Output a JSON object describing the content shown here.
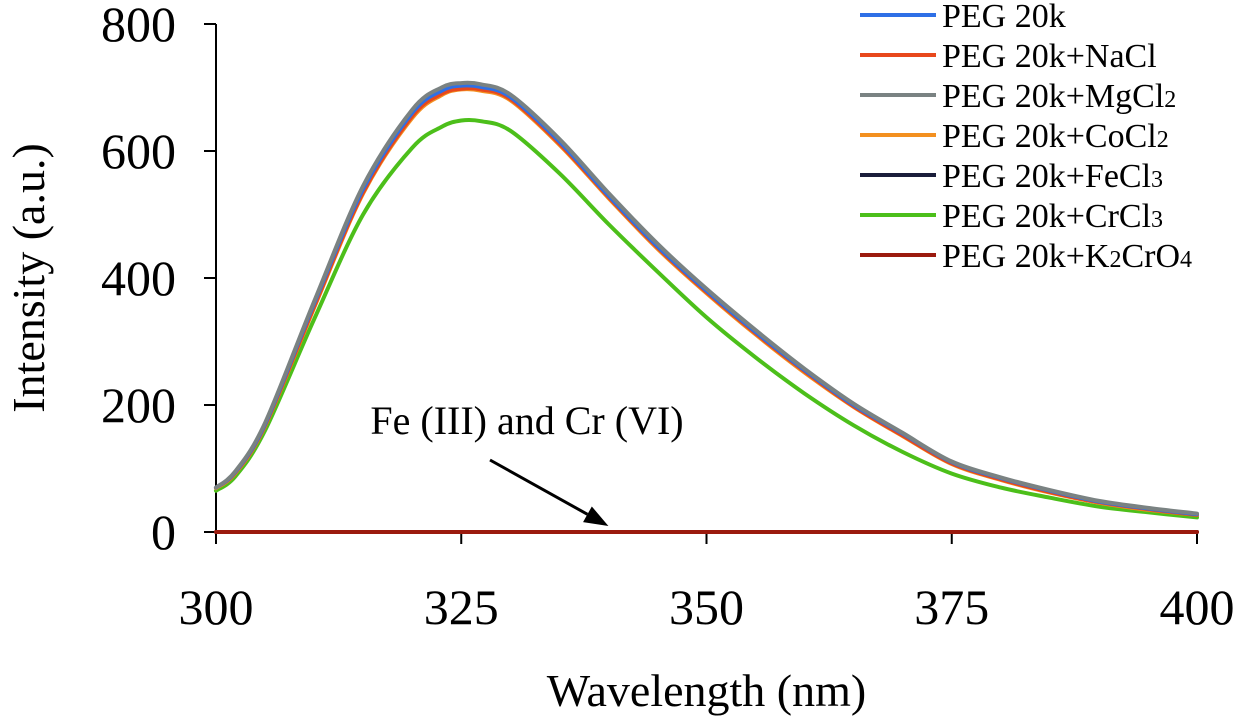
{
  "chart_data": {
    "type": "line",
    "title": "",
    "xlabel": "Wavelength (nm)",
    "ylabel": "Intensity (a.u.)",
    "xlim": [
      300,
      400
    ],
    "ylim": [
      0,
      800
    ],
    "xticks": [
      300,
      325,
      350,
      375,
      400
    ],
    "xtick_labels": [
      "300",
      "325",
      "350",
      "375",
      "400"
    ],
    "yticks": [
      0,
      200,
      400,
      600,
      800
    ],
    "ytick_labels": [
      "0",
      "200",
      "400",
      "600",
      "800"
    ],
    "grid": false,
    "legend_position": "top-right",
    "x": [
      300,
      302,
      305,
      310,
      315,
      320,
      323,
      325,
      327,
      330,
      335,
      340,
      345,
      350,
      355,
      360,
      365,
      370,
      375,
      380,
      385,
      390,
      395,
      400
    ],
    "series": [
      {
        "name": "PEG 20k",
        "label_parts": [
          "PEG 20k",
          "",
          "",
          "",
          ""
        ],
        "color": "#2e6fe6",
        "values": [
          70,
          95,
          170,
          360,
          540,
          660,
          695,
          703,
          701,
          685,
          615,
          530,
          450,
          380,
          315,
          255,
          200,
          155,
          110,
          85,
          65,
          48,
          37,
          28
        ]
      },
      {
        "name": "PEG 20k+NaCl",
        "label_parts": [
          "PEG 20k+NaCl",
          "",
          "",
          "",
          ""
        ],
        "color": "#e8481c",
        "values": [
          70,
          94,
          168,
          355,
          535,
          655,
          690,
          698,
          697,
          682,
          612,
          528,
          448,
          378,
          313,
          253,
          198,
          152,
          108,
          83,
          63,
          47,
          36,
          27
        ]
      },
      {
        "name": "PEG 20k+MgCl₂",
        "label_parts": [
          "PEG 20k+MgCl",
          "2",
          "",
          "",
          ""
        ],
        "color": "#7a8282",
        "values": [
          70,
          96,
          172,
          363,
          545,
          665,
          700,
          707,
          705,
          689,
          619,
          534,
          454,
          383,
          318,
          257,
          202,
          156,
          111,
          86,
          66,
          49,
          38,
          29
        ]
      },
      {
        "name": "PEG 20k+CoCl₂",
        "label_parts": [
          "PEG 20k+CoCl",
          "2",
          "",
          "",
          ""
        ],
        "color": "#f39020",
        "values": [
          69,
          93,
          167,
          353,
          533,
          652,
          688,
          697,
          695,
          680,
          610,
          526,
          446,
          376,
          311,
          251,
          197,
          151,
          107,
          82,
          62,
          46,
          35,
          27
        ]
      },
      {
        "name": "PEG 20k+FeCl₃",
        "label_parts": [
          "PEG 20k+FeCl",
          "3",
          "",
          "",
          ""
        ],
        "color": "#1a1d3a",
        "values": [
          0,
          0,
          0,
          0,
          0,
          0,
          0,
          0,
          0,
          0,
          0,
          0,
          0,
          0,
          0,
          0,
          0,
          0,
          0,
          0,
          0,
          0,
          0,
          0
        ]
      },
      {
        "name": "PEG 20k+CrCl₃",
        "label_parts": [
          "PEG 20k+CrCl",
          "3",
          "",
          "",
          ""
        ],
        "color": "#4cbf1a",
        "values": [
          65,
          88,
          160,
          335,
          500,
          605,
          638,
          648,
          647,
          632,
          565,
          485,
          410,
          338,
          275,
          218,
          168,
          126,
          92,
          70,
          54,
          40,
          31,
          23
        ]
      },
      {
        "name": "PEG 20k+K₂CrO₄",
        "label_parts": [
          "PEG 20k+K",
          "2",
          "CrO",
          "4",
          ""
        ],
        "color": "#9b1a0e",
        "values": [
          0,
          0,
          0,
          0,
          0,
          0,
          0,
          0,
          0,
          0,
          0,
          0,
          0,
          0,
          0,
          0,
          0,
          0,
          0,
          0,
          0,
          0,
          0,
          0
        ]
      }
    ],
    "annotations": [
      {
        "text": "Fe (III) and Cr (VI)",
        "arrow_to": [
          340,
          0
        ]
      }
    ]
  }
}
